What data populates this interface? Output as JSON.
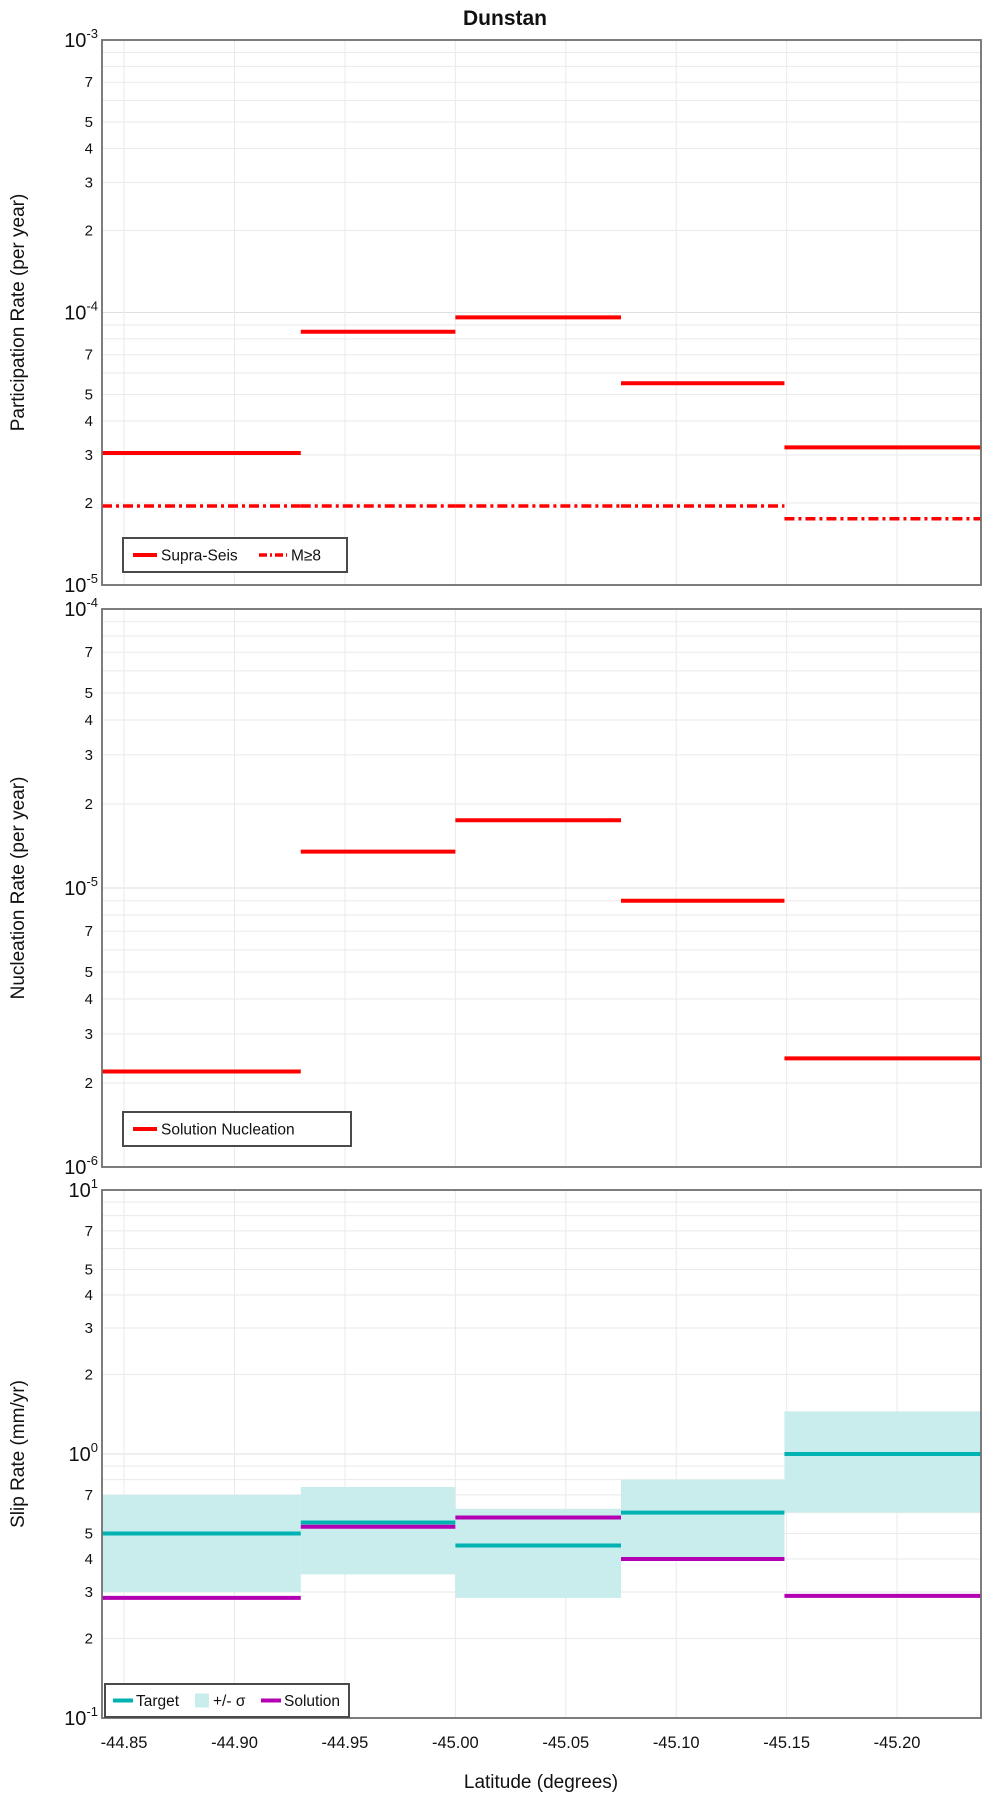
{
  "title": "Dunstan",
  "xlabel": "Latitude (degrees)",
  "x_tick_labels": [
    "-44.85",
    "-44.90",
    "-44.95",
    "-45.00",
    "-45.05",
    "-45.10",
    "-45.15",
    "-45.20"
  ],
  "x_tick_values": [
    -44.85,
    -44.9,
    -44.95,
    -45.0,
    -45.05,
    -45.1,
    -45.15,
    -45.2
  ],
  "colors": {
    "red": "#ff0000",
    "teal": "#00b2b2",
    "band": "#c9ecec",
    "purple": "#b300b3",
    "grid_minor": "#eaeaea",
    "grid_major": "#dfdfdf",
    "border": "#6f6f6f",
    "legend_border": "#4a4a4a",
    "text": "#111111"
  },
  "chart_data": [
    {
      "type": "line",
      "panel": "participation",
      "title": "Dunstan",
      "ylabel": "Participation Rate (per year)",
      "ylim": [
        1e-05,
        0.001
      ],
      "y_decade_exponents": [
        -3,
        -4,
        -5
      ],
      "y_minor_labels": [
        "7",
        "5",
        "4",
        "3",
        "2"
      ],
      "x": {
        "section_edges": [
          -44.84,
          -44.93,
          -45.0,
          -45.075,
          -45.149,
          -45.238
        ]
      },
      "series": [
        {
          "name": "Supra-Seis",
          "style": "solid",
          "color": "red",
          "values": [
            3.05e-05,
            8.5e-05,
            9.6e-05,
            5.5e-05,
            3.2e-05
          ]
        },
        {
          "name": "M≥8",
          "style": "dashdot",
          "color": "red",
          "values": [
            1.95e-05,
            1.95e-05,
            1.95e-05,
            1.95e-05,
            1.75e-05
          ]
        }
      ],
      "legend": {
        "position": "lower-left",
        "items": [
          {
            "label": "Supra-Seis",
            "swatch": "line-solid",
            "color": "red"
          },
          {
            "label": "M≥8",
            "swatch": "line-dashdot",
            "color": "red"
          }
        ]
      }
    },
    {
      "type": "line",
      "panel": "nucleation",
      "ylabel": "Nucleation Rate (per year)",
      "ylim": [
        1e-06,
        0.0001
      ],
      "y_decade_exponents": [
        -4,
        -5,
        -6
      ],
      "y_minor_labels": [
        "7",
        "5",
        "4",
        "3",
        "2"
      ],
      "x": {
        "section_edges": [
          -44.84,
          -44.93,
          -45.0,
          -45.075,
          -45.149,
          -45.238
        ]
      },
      "series": [
        {
          "name": "Solution Nucleation",
          "style": "solid",
          "color": "red",
          "values": [
            2.2e-06,
            1.35e-05,
            1.75e-05,
            9e-06,
            2.45e-06
          ]
        }
      ],
      "legend": {
        "position": "lower-left",
        "items": [
          {
            "label": "Solution Nucleation",
            "swatch": "line-solid",
            "color": "red"
          }
        ]
      }
    },
    {
      "type": "line",
      "panel": "slip-rate",
      "ylabel": "Slip Rate (mm/yr)",
      "ylim": [
        0.1,
        10
      ],
      "y_decade_exponents": [
        1,
        0,
        -1
      ],
      "y_minor_labels": [
        "7",
        "5",
        "4",
        "3",
        "2"
      ],
      "x": {
        "section_edges": [
          -44.84,
          -44.93,
          -45.0,
          -45.075,
          -45.149,
          -45.238
        ]
      },
      "band": {
        "name": "+/- σ",
        "color": "band",
        "lo": [
          0.3,
          0.35,
          0.285,
          0.4,
          0.6
        ],
        "hi": [
          0.7,
          0.75,
          0.62,
          0.8,
          1.45
        ]
      },
      "series": [
        {
          "name": "Target",
          "style": "solid",
          "color": "teal",
          "values": [
            0.5,
            0.55,
            0.45,
            0.6,
            1.0
          ]
        },
        {
          "name": "Solution",
          "style": "solid",
          "color": "purple",
          "values": [
            0.285,
            0.53,
            0.575,
            0.4,
            0.29
          ]
        }
      ],
      "legend": {
        "position": "lower-left",
        "items": [
          {
            "label": "Target",
            "swatch": "line-solid",
            "color": "teal"
          },
          {
            "label": "+/- σ",
            "swatch": "patch",
            "color": "band"
          },
          {
            "label": "Solution",
            "swatch": "line-solid",
            "color": "purple"
          }
        ]
      }
    }
  ],
  "xlim": [
    -44.84,
    -45.238
  ]
}
